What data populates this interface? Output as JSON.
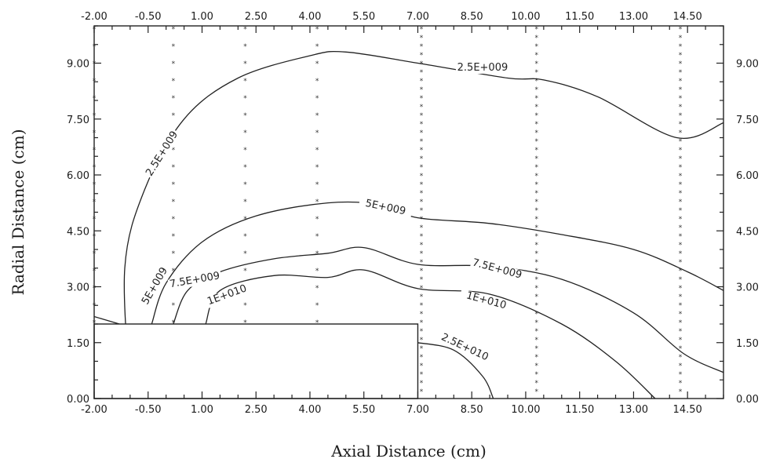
{
  "chart_data": {
    "type": "contour",
    "title": "",
    "xlabel": "Axial Distance (cm)",
    "ylabel": "Radial Distance (cm)",
    "xlim": [
      -2.0,
      15.5
    ],
    "ylim": [
      0.0,
      10.0
    ],
    "x_ticks": [
      "-2.00",
      "-0.50",
      "1.00",
      "2.50",
      "4.00",
      "5.50",
      "7.00",
      "8.50",
      "10.00",
      "11.50",
      "13.00",
      "14.50"
    ],
    "y_ticks": [
      "0.00",
      "1.50",
      "3.00",
      "4.50",
      "6.00",
      "7.50",
      "9.00"
    ],
    "top_ticks": [
      "-2.00",
      "-0.50",
      "1.00",
      "2.50",
      "4.00",
      "5.50",
      "7.00",
      "8.50",
      "10.00",
      "11.50",
      "13.00",
      "14.50"
    ],
    "right_ticks": [
      "0.00",
      "1.50",
      "3.00",
      "4.50",
      "6.00",
      "7.50",
      "9.00"
    ],
    "obstacle": {
      "x": [
        -2.0,
        7.0
      ],
      "y": [
        0.0,
        2.0
      ]
    },
    "grid_columns_x": [
      -2.0,
      0.2,
      2.2,
      4.2,
      7.1,
      10.3,
      14.3
    ],
    "contours": [
      {
        "level": "2.5E+009",
        "points": [
          [
            -1.0,
            0.2
          ],
          [
            -1.15,
            3.5
          ],
          [
            -0.6,
            5.6
          ],
          [
            0.5,
            7.5
          ],
          [
            2.0,
            8.6
          ],
          [
            4.0,
            9.2
          ],
          [
            5.0,
            9.3
          ],
          [
            7.0,
            9.0
          ],
          [
            9.5,
            8.6
          ],
          [
            10.5,
            8.55
          ],
          [
            12.0,
            8.1
          ],
          [
            14.2,
            7.0
          ],
          [
            15.5,
            7.4
          ]
        ],
        "label_positions": [
          [
            -0.1,
            6.5,
            -58
          ],
          [
            8.8,
            8.8,
            0
          ]
        ]
      },
      {
        "level": "2.5E+009",
        "points": [
          [
            -2.0,
            2.2
          ],
          [
            -1.3,
            2.0
          ]
        ],
        "label_positions": []
      },
      {
        "level": "5E+009",
        "points": [
          [
            -0.4,
            2.0
          ],
          [
            0.0,
            3.1
          ],
          [
            1.0,
            4.2
          ],
          [
            2.5,
            4.9
          ],
          [
            4.5,
            5.25
          ],
          [
            6.0,
            5.2
          ],
          [
            7.0,
            4.85
          ],
          [
            9.0,
            4.7
          ],
          [
            11.0,
            4.4
          ],
          [
            13.0,
            4.0
          ],
          [
            14.5,
            3.4
          ],
          [
            15.5,
            2.9
          ]
        ],
        "label_positions": [
          [
            -0.3,
            2.95,
            -60
          ],
          [
            6.1,
            5.05,
            12
          ]
        ]
      },
      {
        "level": "7.5E+009",
        "points": [
          [
            0.2,
            2.0
          ],
          [
            0.6,
            2.9
          ],
          [
            1.5,
            3.4
          ],
          [
            3.0,
            3.75
          ],
          [
            4.5,
            3.9
          ],
          [
            5.5,
            4.05
          ],
          [
            7.0,
            3.6
          ],
          [
            9.0,
            3.55
          ],
          [
            11.0,
            3.2
          ],
          [
            13.0,
            2.3
          ],
          [
            14.4,
            1.2
          ],
          [
            15.5,
            0.7
          ]
        ],
        "label_positions": [
          [
            0.8,
            3.1,
            -10
          ],
          [
            9.2,
            3.4,
            15
          ]
        ]
      },
      {
        "level": "1E+010",
        "points": [
          [
            1.1,
            2.0
          ],
          [
            1.5,
            2.9
          ],
          [
            3.0,
            3.3
          ],
          [
            4.5,
            3.25
          ],
          [
            5.5,
            3.45
          ],
          [
            7.0,
            2.95
          ],
          [
            9.0,
            2.8
          ],
          [
            11.0,
            2.0
          ],
          [
            12.5,
            1.0
          ],
          [
            13.6,
            0.0
          ]
        ],
        "label_positions": [
          [
            1.7,
            2.7,
            -20
          ],
          [
            8.9,
            2.55,
            15
          ]
        ]
      },
      {
        "level": "2.5E+010",
        "points": [
          [
            7.0,
            1.5
          ],
          [
            8.0,
            1.3
          ],
          [
            8.8,
            0.6
          ],
          [
            9.1,
            0.0
          ]
        ],
        "label_positions": [
          [
            8.3,
            1.3,
            25
          ]
        ]
      }
    ]
  }
}
